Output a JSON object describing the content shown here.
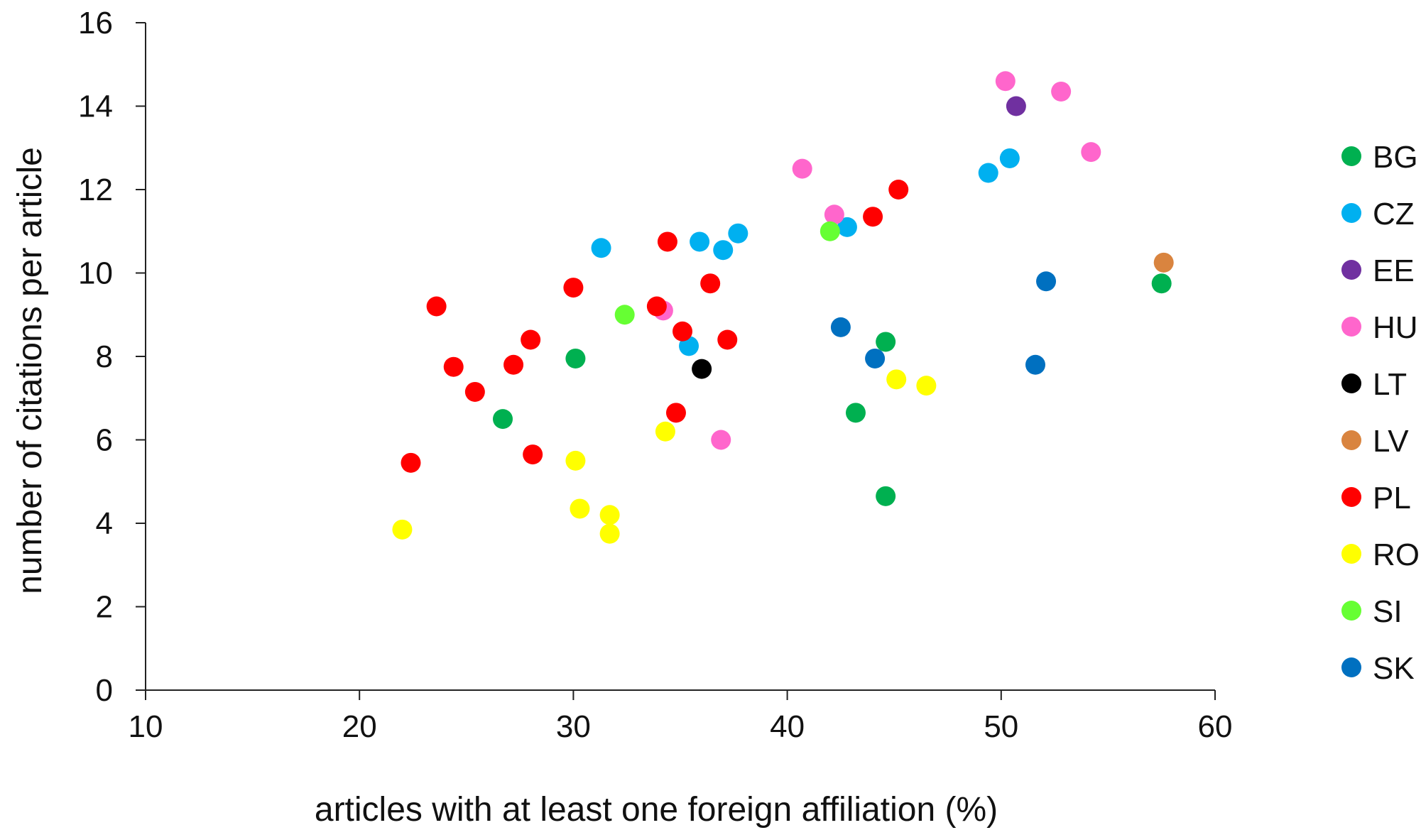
{
  "chart_data": {
    "type": "scatter",
    "title": "",
    "xlabel": "articles with at least one foreign affiliation (%)",
    "ylabel": "number of citations per article",
    "xlim": [
      10,
      60
    ],
    "ylim": [
      0,
      16
    ],
    "xticks": [
      "10",
      "20",
      "30",
      "40",
      "50",
      "60"
    ],
    "yticks": [
      "0",
      "2",
      "4",
      "6",
      "8",
      "10",
      "12",
      "14",
      "16"
    ],
    "grid": false,
    "legend_position": "right",
    "series": [
      {
        "name": "BG",
        "color": "#00b050",
        "points": [
          [
            26.7,
            6.5
          ],
          [
            30.1,
            7.95
          ],
          [
            43.2,
            6.65
          ],
          [
            44.6,
            8.35
          ],
          [
            44.6,
            4.65
          ],
          [
            57.5,
            9.75
          ]
        ]
      },
      {
        "name": "CZ",
        "color": "#00b0f0",
        "points": [
          [
            31.3,
            10.6
          ],
          [
            35.4,
            8.25
          ],
          [
            35.9,
            10.75
          ],
          [
            37.0,
            10.55
          ],
          [
            37.7,
            10.95
          ],
          [
            42.8,
            11.1
          ],
          [
            49.4,
            12.4
          ],
          [
            50.4,
            12.75
          ]
        ]
      },
      {
        "name": "EE",
        "color": "#7030a0",
        "points": [
          [
            50.7,
            14.0
          ]
        ]
      },
      {
        "name": "HU",
        "color": "#ff66cc",
        "points": [
          [
            34.2,
            9.1
          ],
          [
            36.9,
            6.0
          ],
          [
            40.7,
            12.5
          ],
          [
            42.2,
            11.4
          ],
          [
            50.2,
            14.6
          ],
          [
            52.8,
            14.35
          ],
          [
            54.2,
            12.9
          ]
        ]
      },
      {
        "name": "LT",
        "color": "#000000",
        "points": [
          [
            36.0,
            7.7
          ]
        ]
      },
      {
        "name": "LV",
        "color": "#d9843f",
        "points": [
          [
            57.6,
            10.25
          ]
        ]
      },
      {
        "name": "PL",
        "color": "#ff0000",
        "points": [
          [
            22.4,
            5.45
          ],
          [
            23.6,
            9.2
          ],
          [
            24.4,
            7.75
          ],
          [
            25.4,
            7.15
          ],
          [
            27.2,
            7.8
          ],
          [
            28.0,
            8.4
          ],
          [
            28.1,
            5.65
          ],
          [
            30.0,
            9.65
          ],
          [
            33.9,
            9.2
          ],
          [
            34.4,
            10.75
          ],
          [
            34.8,
            6.65
          ],
          [
            35.1,
            8.6
          ],
          [
            36.4,
            9.75
          ],
          [
            37.2,
            8.4
          ],
          [
            44.0,
            11.35
          ],
          [
            45.2,
            12.0
          ]
        ]
      },
      {
        "name": "RO",
        "color": "#ffff00",
        "points": [
          [
            22.0,
            3.85
          ],
          [
            30.1,
            5.5
          ],
          [
            30.3,
            4.35
          ],
          [
            31.7,
            4.2
          ],
          [
            31.7,
            3.75
          ],
          [
            34.3,
            6.2
          ],
          [
            45.1,
            7.45
          ],
          [
            46.5,
            7.3
          ]
        ]
      },
      {
        "name": "SI",
        "color": "#66ff33",
        "points": [
          [
            32.4,
            9.0
          ],
          [
            42.0,
            11.0
          ]
        ]
      },
      {
        "name": "SK",
        "color": "#0070c0",
        "points": [
          [
            42.5,
            8.7
          ],
          [
            44.1,
            7.95
          ],
          [
            51.6,
            7.8
          ],
          [
            52.1,
            9.8
          ]
        ]
      }
    ]
  }
}
